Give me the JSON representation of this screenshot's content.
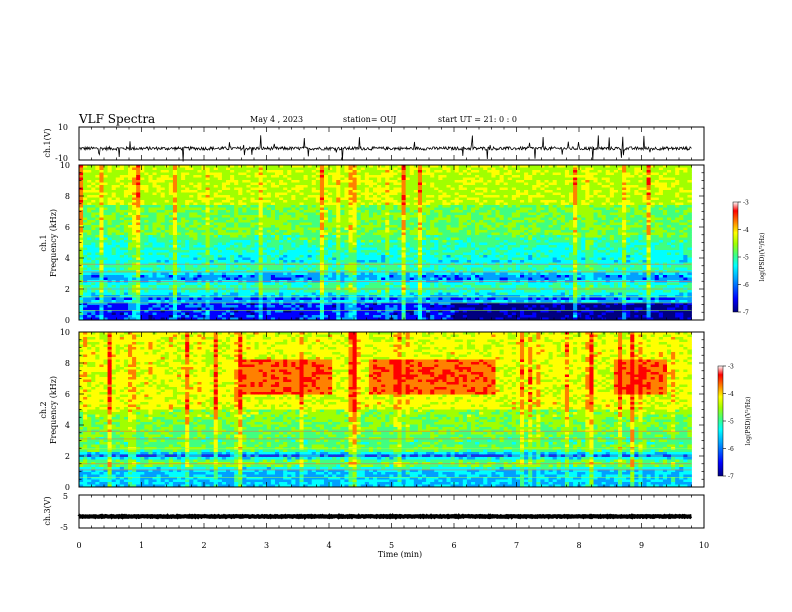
{
  "header": {
    "title": "VLF Spectra",
    "date": "May 4 , 2023",
    "station": "station= OUJ",
    "start_ut": "start  UT =   21: 0  : 0"
  },
  "colors": {
    "colormap": [
      "#000080",
      "#0000ff",
      "#00a0ff",
      "#00ffff",
      "#40ff80",
      "#a0ff00",
      "#ffff00",
      "#ff8000",
      "#ff0000",
      "#ffffff"
    ]
  },
  "chart_data": [
    {
      "type": "line",
      "id": "ch1-waveform",
      "ylabel": "ch.1(V)",
      "ylim": [
        -10,
        10
      ],
      "y_ticks": [
        "10",
        "-10"
      ],
      "xlim": [
        0,
        10
      ],
      "x_extent_min": [
        0,
        9.8
      ],
      "baseline": -3
    },
    {
      "type": "heatmap",
      "id": "ch1-spectrogram",
      "ylabel_line1": "ch.1",
      "ylabel_line2": "Frequency (kHz)",
      "ylim": [
        0,
        10
      ],
      "y_ticks": [
        "0",
        "2",
        "4",
        "6",
        "8",
        "10"
      ],
      "xlim": [
        0,
        10
      ],
      "x_extent_min": [
        0,
        9.8
      ],
      "colorbar": {
        "range": [
          -7,
          -3
        ],
        "ticks": [
          "-3",
          "-4",
          "-5",
          "-6",
          "-7"
        ],
        "label": "log(PSD)(V²/Hz)"
      }
    },
    {
      "type": "heatmap",
      "id": "ch2-spectrogram",
      "ylabel_line1": "ch.2",
      "ylabel_line2": "Frequency (kHz)",
      "ylim": [
        0,
        10
      ],
      "y_ticks": [
        "0",
        "2",
        "4",
        "6",
        "8",
        "10"
      ],
      "xlim": [
        0,
        10
      ],
      "x_extent_min": [
        0,
        9.8
      ],
      "colorbar": {
        "range": [
          -7,
          -3
        ],
        "ticks": [
          "-3",
          "-4",
          "-5",
          "-6",
          "-7"
        ],
        "label": "log(PSD)(V²/Hz)"
      }
    },
    {
      "type": "line",
      "id": "ch3-waveform",
      "ylabel": "ch.3(V)",
      "ylim": [
        -5,
        5
      ],
      "y_ticks": [
        "5",
        "-5"
      ],
      "xlim": [
        0,
        10
      ],
      "x_extent_min": [
        0,
        9.8
      ],
      "baseline": -1.5
    }
  ],
  "x_axis": {
    "label": "Time (min)",
    "ticks": [
      "0",
      "1",
      "2",
      "3",
      "4",
      "5",
      "6",
      "7",
      "8",
      "9",
      "10"
    ]
  }
}
